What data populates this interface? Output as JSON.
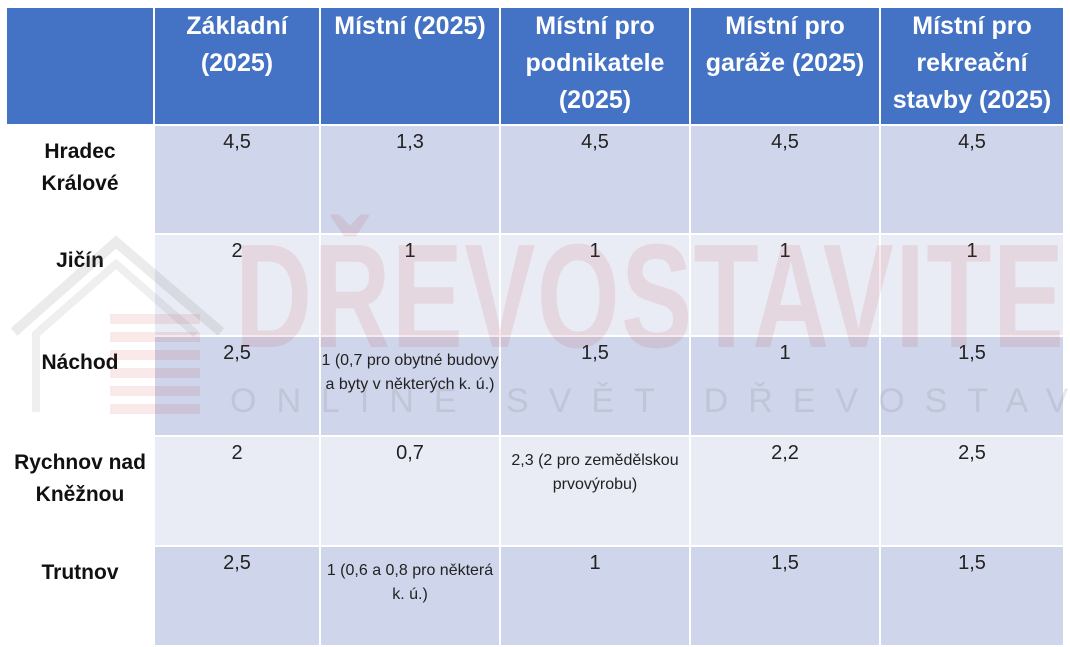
{
  "table": {
    "header": [
      "",
      "Základní (2025)",
      "Místní (2025)",
      "Místní pro podnikatele (2025)",
      "Místní pro garáže (2025)",
      "Místní pro rekreační stavby (2025)"
    ],
    "rows": [
      {
        "name": "Hradec Králové",
        "cells": [
          "4,5",
          "1,3",
          "4,5",
          "4,5",
          "4,5"
        ]
      },
      {
        "name": "Jičín",
        "cells": [
          "2",
          "1",
          "1",
          "1",
          "1"
        ]
      },
      {
        "name": "Náchod",
        "cells": [
          "2,5",
          "1 (0,7 pro obytné budovy a byty v některých k. ú.)",
          "1,5",
          "1",
          "1,5"
        ]
      },
      {
        "name": "Rychnov nad Kněžnou",
        "cells": [
          "2",
          "0,7",
          "2,3 (2 pro zemědělskou prvovýrobu)",
          "2,2",
          "2,5"
        ]
      },
      {
        "name": "Trutnov",
        "cells": [
          "2,5",
          "1 (0,6 a 0,8 pro některá k. ú.)",
          "1",
          "1,5",
          "1,5"
        ]
      }
    ]
  },
  "watermark": {
    "word": "DŘEVOSTAVITEL",
    "tagline": "ONLINE SVĚT DŘEVOSTAVEB"
  },
  "colors": {
    "header": "#4472c4",
    "row_dark": "#cfd5ea",
    "row_light": "#e9ebf5"
  }
}
